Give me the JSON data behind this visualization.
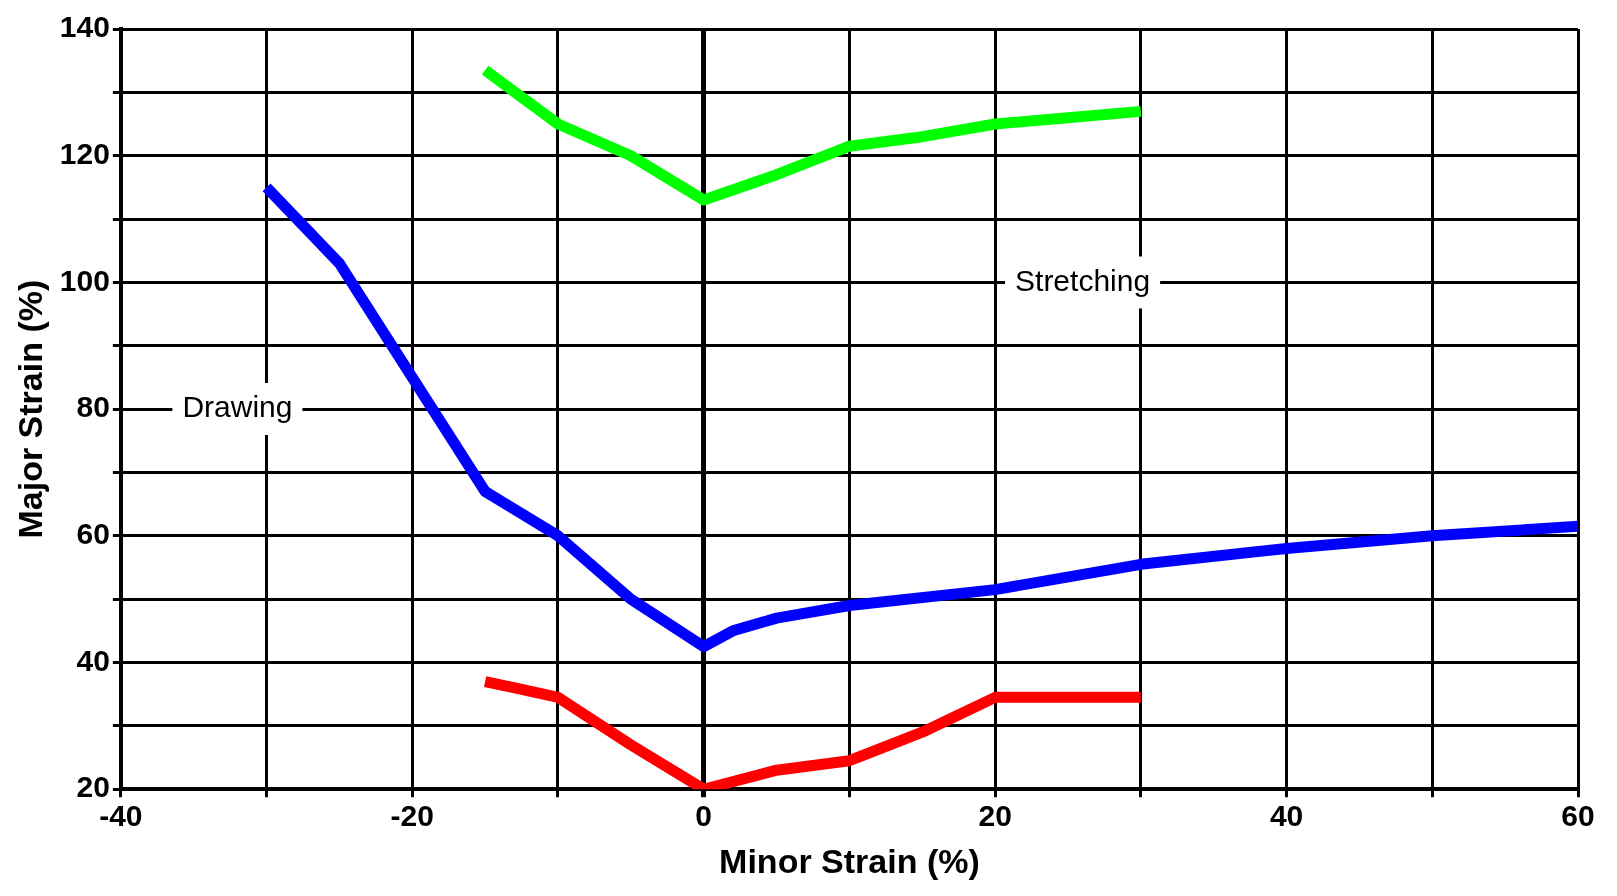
{
  "chart_data": {
    "type": "line",
    "xlabel": "Minor Strain (%)",
    "ylabel": "Major Strain (%)",
    "xlim": [
      -40,
      60
    ],
    "ylim": [
      20,
      140
    ],
    "xticks": [
      -40,
      {
        "value": -30,
        "label": null
      },
      -20,
      {
        "value": -10,
        "label": null
      },
      0,
      {
        "value": 10,
        "label": null
      },
      20,
      {
        "value": 30,
        "label": null
      },
      40,
      {
        "value": 50,
        "label": null
      },
      60
    ],
    "yticks": [
      20,
      {
        "value": 30,
        "label": null
      },
      40,
      {
        "value": 50,
        "label": null
      },
      60,
      {
        "value": 70,
        "label": null
      },
      80,
      {
        "value": 90,
        "label": null
      },
      100,
      {
        "value": 110,
        "label": null
      },
      120,
      {
        "value": 130,
        "label": null
      },
      140
    ],
    "grid": true,
    "legend": false,
    "marker": "none",
    "line_style": "solid",
    "annotations": [
      "Drawing",
      "Stretching"
    ],
    "series": [
      {
        "color": "#00ff00",
        "x": [
          -15,
          -10,
          -5,
          0,
          5,
          10,
          15,
          20,
          25,
          30
        ],
        "values": [
          133.5,
          125,
          120,
          113,
          117,
          121.5,
          123,
          125,
          126,
          127
        ]
      },
      {
        "color": "#0000ff",
        "x": [
          -30,
          -25,
          -20,
          -15,
          -10,
          -5,
          0,
          2,
          5,
          10,
          20,
          30,
          40,
          50,
          60
        ],
        "values": [
          115,
          103,
          85,
          67,
          60,
          50,
          42.5,
          45,
          47,
          49,
          51.5,
          55.5,
          58,
          60,
          61.5
        ]
      },
      {
        "color": "#ff0000",
        "x": [
          -15,
          -10,
          -5,
          0,
          5,
          10,
          15,
          20,
          30
        ],
        "values": [
          37,
          34.5,
          27,
          20,
          23,
          24.5,
          29,
          34.5,
          34.5
        ]
      }
    ]
  }
}
